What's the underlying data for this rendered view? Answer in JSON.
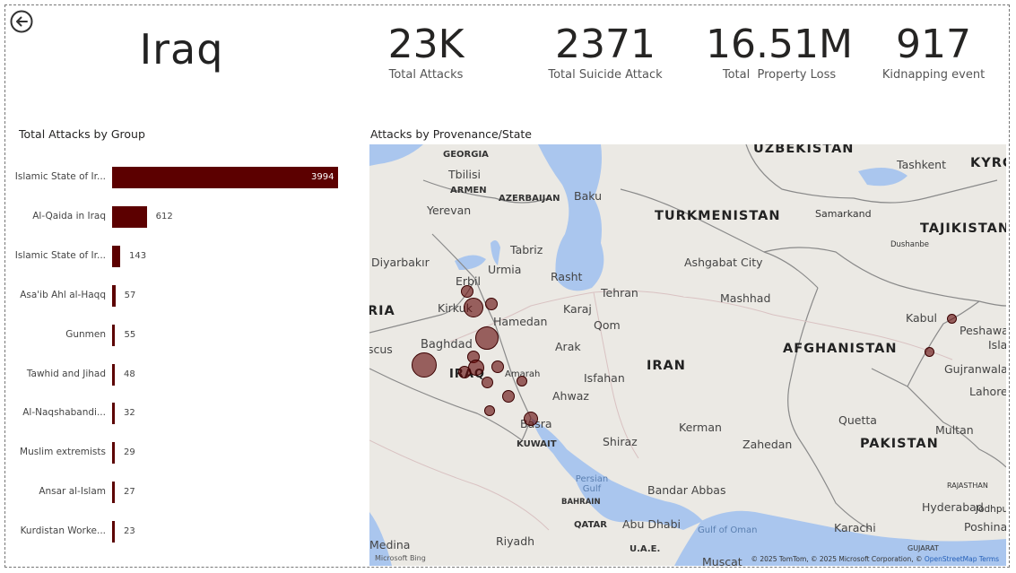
{
  "header": {
    "country": "Iraq",
    "kpis": [
      {
        "value": "23K",
        "label": "Total Attacks"
      },
      {
        "value": "2371",
        "label": "Total Suicide Attack"
      },
      {
        "value": "16.51M",
        "label": "Total  Property Loss"
      },
      {
        "value": "917",
        "label": "Kidnapping event"
      }
    ]
  },
  "bar_chart": {
    "title": "Total Attacks by Group",
    "bar_color": "#5c0000"
  },
  "chart_data": {
    "type": "bar",
    "orientation": "horizontal",
    "categories": [
      "Islamic State of Ir...",
      "Al-Qaida in Iraq",
      "Islamic State of Ir...",
      "Asa'ib Ahl al-Haqq",
      "Gunmen",
      "Tawhid and Jihad",
      "Al-Naqshabandi...",
      "Muslim extremists",
      "Ansar al-Islam",
      "Kurdistan Worke..."
    ],
    "values": [
      3994,
      612,
      143,
      57,
      55,
      48,
      32,
      29,
      27,
      23
    ],
    "title": "Total Attacks by Group",
    "xlabel": "",
    "ylabel": ""
  },
  "map": {
    "title": "Attacks by Provenance/State",
    "countries": [
      "UZBEKISTAN",
      "KYRG",
      "TURKMENISTAN",
      "TAJIKISTAN",
      "AFGHANISTAN",
      "IRAN",
      "PAKISTAN",
      "IRAQ",
      "KUWAIT",
      "RIA",
      "GEORGIA",
      "ARMEN",
      "AZERBAIJAN",
      "BAHRAIN",
      "QATAR",
      "U.A.E.",
      "RAJASTHAN",
      "GUJARAT"
    ],
    "cities": [
      "Tbilisi",
      "Baku",
      "Yerevan",
      "Tashkent",
      "Samarkand",
      "Dushanbe",
      "Diyarbakır",
      "Tabriz",
      "Urmia",
      "Ashgabat City",
      "Rasht",
      "Erbil",
      "Kirkuk",
      "Tehran",
      "Mashhad",
      "Karaj",
      "Hamedan",
      "Qom",
      "Baghdad",
      "Arak",
      "Kabul",
      "Peshawa",
      "Isla",
      "Gujranwala",
      "Lahore",
      "Isfahan",
      "Amarah",
      "Ahwaz",
      "Basra",
      "Shiraz",
      "Kerman",
      "Zahedan",
      "Quetta",
      "Multan",
      "Bandar Abbas",
      "Hyderabad",
      "Jodhpur",
      "Abu Dhabi",
      "Riyadh",
      "Karachi",
      "Poshina",
      "Medina",
      "Muscat",
      "scus",
      "Gulf of Oman"
    ],
    "water": [
      "Persian Gulf"
    ],
    "attribution": "© 2025 TomTom, © 2025 Microsoft Corporation, © ",
    "attribution_link": "OpenStreetMap",
    "attribution_tail": " Terms",
    "logo_text": "Microsoft Bing",
    "point_color": "#7a1a1a"
  }
}
